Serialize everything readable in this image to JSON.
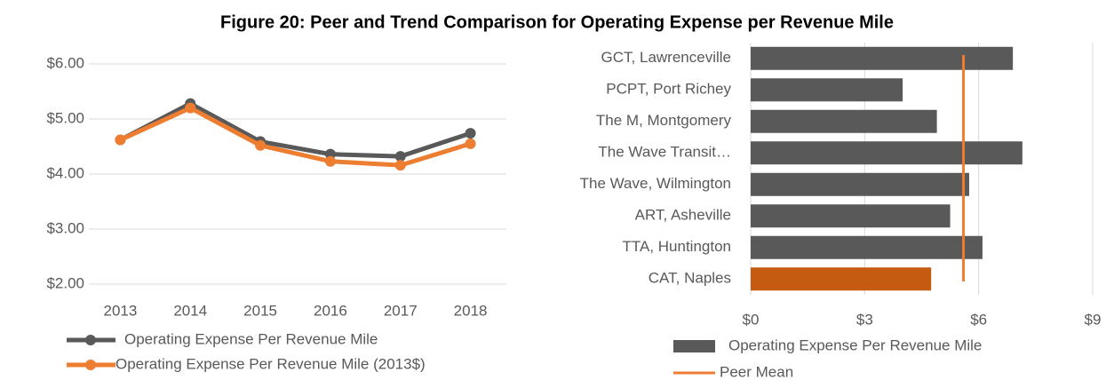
{
  "title": "Figure 20: Peer and Trend Comparison for Operating Expense per Revenue Mile",
  "chart_data": [
    {
      "type": "line",
      "categories": [
        "2013",
        "2014",
        "2015",
        "2016",
        "2017",
        "2018"
      ],
      "series": [
        {
          "name": "Operating Expense Per Revenue Mile",
          "color": "#595959",
          "values": [
            4.62,
            5.28,
            4.59,
            4.36,
            4.32,
            4.74
          ]
        },
        {
          "name": "Operating Expense Per Revenue Mile (2013$)",
          "color": "#ed7d31",
          "values": [
            4.62,
            5.2,
            4.52,
            4.23,
            4.16,
            4.55
          ]
        }
      ],
      "ylim": [
        2,
        6
      ],
      "yticks": [
        {
          "value": 2,
          "label": "$2.00"
        },
        {
          "value": 3,
          "label": "$3.00"
        },
        {
          "value": 4,
          "label": "$4.00"
        },
        {
          "value": 5,
          "label": "$5.00"
        },
        {
          "value": 6,
          "label": "$6.00"
        }
      ],
      "grid": true,
      "legend": "bottom"
    },
    {
      "type": "hbar",
      "categories": [
        "GCT, Lawrenceville",
        "PCPT, Port Richey",
        "The M, Montgomery",
        "The Wave Transit…",
        "The Wave, Wilmington",
        "ART, Asheville",
        "TTA, Huntington",
        "CAT, Naples"
      ],
      "series": [
        {
          "name": "Operating Expense Per Revenue Mile",
          "color": "#595959",
          "values": [
            6.9,
            4.0,
            4.9,
            7.15,
            5.75,
            5.25,
            6.1,
            4.75
          ],
          "colors": [
            "#595959",
            "#595959",
            "#595959",
            "#595959",
            "#595959",
            "#595959",
            "#595959",
            "#c55a11"
          ]
        }
      ],
      "reference_lines": [
        {
          "name": "Peer Mean",
          "value": 5.6,
          "color": "#ed7d31"
        }
      ],
      "xlim": [
        0,
        9
      ],
      "xticks": [
        {
          "value": 0,
          "label": "$0"
        },
        {
          "value": 3,
          "label": "$3"
        },
        {
          "value": 6,
          "label": "$6"
        },
        {
          "value": 9,
          "label": "$9"
        }
      ],
      "grid": true,
      "legend": "bottom"
    }
  ]
}
